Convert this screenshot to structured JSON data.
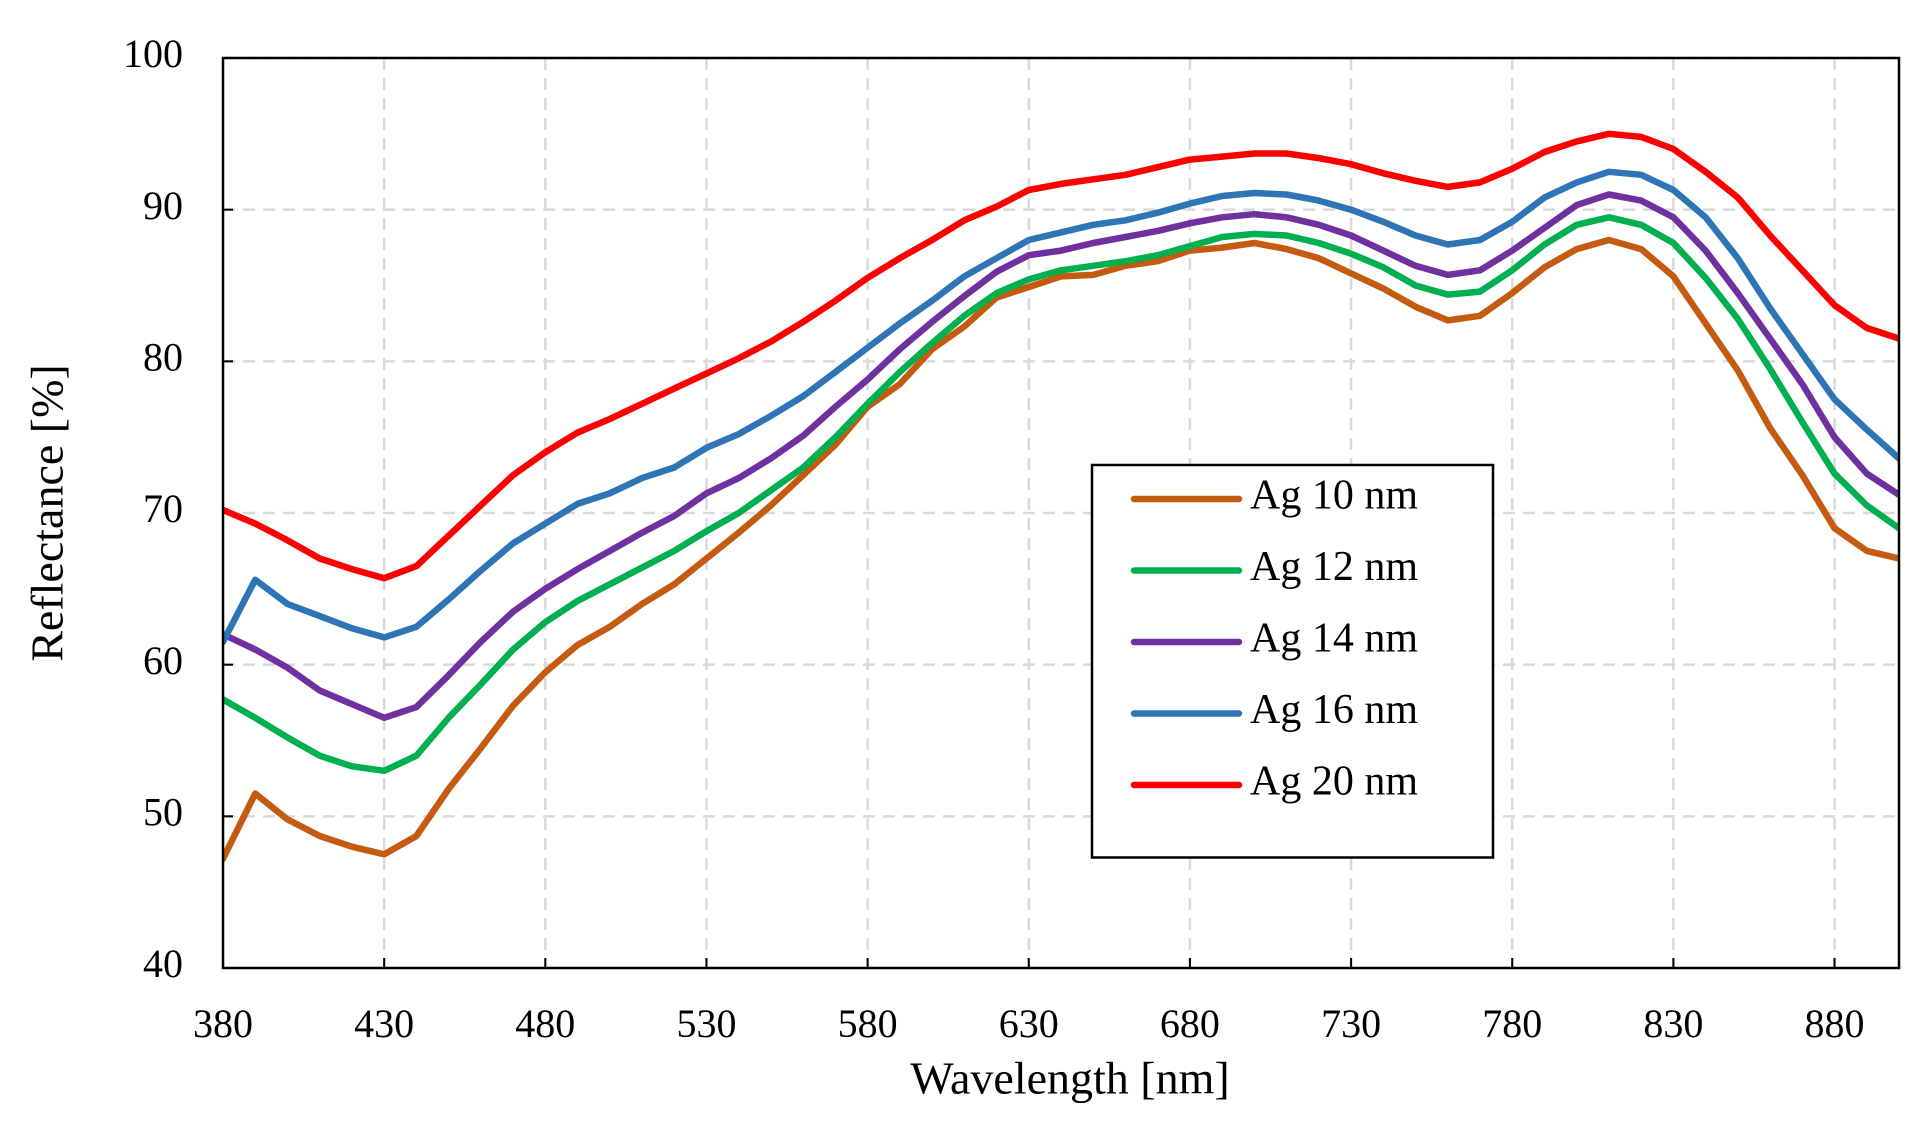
{
  "chart_data": {
    "type": "line",
    "xlabel": "Wavelength [nm]",
    "ylabel": "Reflectance [%]",
    "x": [
      380,
      390,
      400,
      410,
      420,
      430,
      440,
      450,
      460,
      470,
      480,
      490,
      500,
      510,
      520,
      530,
      540,
      550,
      560,
      570,
      580,
      590,
      600,
      610,
      620,
      630,
      640,
      650,
      660,
      670,
      680,
      690,
      700,
      710,
      720,
      730,
      740,
      750,
      760,
      770,
      780,
      790,
      800,
      810,
      820,
      830,
      840,
      850,
      860,
      870,
      880,
      890,
      900
    ],
    "xlim": [
      380,
      900
    ],
    "xticks": [
      380,
      430,
      480,
      530,
      580,
      630,
      680,
      730,
      780,
      830,
      880
    ],
    "ylim": [
      40,
      100
    ],
    "yticks": [
      40,
      50,
      60,
      70,
      80,
      90,
      100
    ],
    "grid": true,
    "legend": "center-right",
    "series": [
      {
        "name": "Ag 10 nm",
        "color": "#c55a11",
        "values": [
          47.2,
          51.5,
          49.8,
          48.7,
          48,
          47.5,
          48.7,
          51.8,
          54.5,
          57.3,
          59.5,
          61.3,
          62.5,
          64,
          65.3,
          67,
          68.7,
          70.5,
          72.5,
          74.5,
          77,
          78.5,
          80.8,
          82.3,
          84.2,
          84.9,
          85.6,
          85.7,
          86.3,
          86.6,
          87.3,
          87.5,
          87.8,
          87.4,
          86.8,
          85.8,
          84.8,
          83.6,
          82.7,
          83,
          84.5,
          86.2,
          87.4,
          88,
          87.4,
          85.6,
          82.5,
          79.4,
          75.6,
          72.5,
          69,
          67.5,
          67
        ]
      },
      {
        "name": "Ag 12 nm",
        "color": "#00b050",
        "values": [
          57.7,
          56.5,
          55.2,
          54,
          53.3,
          53,
          54,
          56.5,
          58.7,
          61,
          62.8,
          64.2,
          65.3,
          66.4,
          67.5,
          68.8,
          70,
          71.5,
          73,
          75,
          77.2,
          79.3,
          81.2,
          83,
          84.5,
          85.4,
          86,
          86.3,
          86.6,
          87,
          87.6,
          88.2,
          88.4,
          88.3,
          87.8,
          87.1,
          86.2,
          85,
          84.4,
          84.6,
          86,
          87.7,
          89,
          89.5,
          89,
          87.8,
          85.5,
          82.8,
          79.5,
          76,
          72.6,
          70.5,
          69
        ]
      },
      {
        "name": "Ag 14 nm",
        "color": "#7030a0",
        "values": [
          62,
          61,
          59.8,
          58.3,
          57.4,
          56.5,
          57.2,
          59.3,
          61.5,
          63.5,
          65,
          66.3,
          67.5,
          68.7,
          69.8,
          71.3,
          72.3,
          73.6,
          75.1,
          77,
          78.8,
          80.8,
          82.6,
          84.3,
          85.9,
          87,
          87.3,
          87.8,
          88.2,
          88.6,
          89.1,
          89.5,
          89.7,
          89.5,
          89,
          88.3,
          87.3,
          86.3,
          85.7,
          86,
          87.3,
          88.8,
          90.3,
          91,
          90.6,
          89.5,
          87.3,
          84.5,
          81.5,
          78.5,
          75,
          72.6,
          71.2
        ]
      },
      {
        "name": "Ag 16 nm",
        "color": "#2e75b6",
        "values": [
          61.5,
          65.6,
          64,
          63.2,
          62.4,
          61.8,
          62.5,
          64.3,
          66.2,
          68,
          69.3,
          70.6,
          71.3,
          72.3,
          73,
          74.3,
          75.2,
          76.4,
          77.7,
          79.3,
          80.9,
          82.5,
          84,
          85.6,
          86.8,
          88,
          88.5,
          89,
          89.3,
          89.8,
          90.4,
          90.9,
          91.1,
          91,
          90.6,
          90,
          89.2,
          88.3,
          87.7,
          88,
          89.2,
          90.8,
          91.8,
          92.5,
          92.3,
          91.3,
          89.5,
          86.8,
          83.5,
          80.5,
          77.5,
          75.5,
          73.6
        ]
      },
      {
        "name": "Ag 20 nm",
        "color": "#ff0000",
        "values": [
          70.2,
          69.3,
          68.2,
          67,
          66.3,
          65.7,
          66.5,
          68.5,
          70.5,
          72.5,
          74,
          75.3,
          76.2,
          77.2,
          78.2,
          79.2,
          80.2,
          81.3,
          82.6,
          84,
          85.5,
          86.8,
          88,
          89.3,
          90.2,
          91.3,
          91.7,
          92,
          92.3,
          92.8,
          93.3,
          93.5,
          93.7,
          93.7,
          93.4,
          93,
          92.4,
          91.9,
          91.5,
          91.8,
          92.7,
          93.8,
          94.5,
          95,
          94.8,
          94,
          92.5,
          90.8,
          88.3,
          86,
          83.7,
          82.2,
          81.5
        ]
      }
    ]
  }
}
